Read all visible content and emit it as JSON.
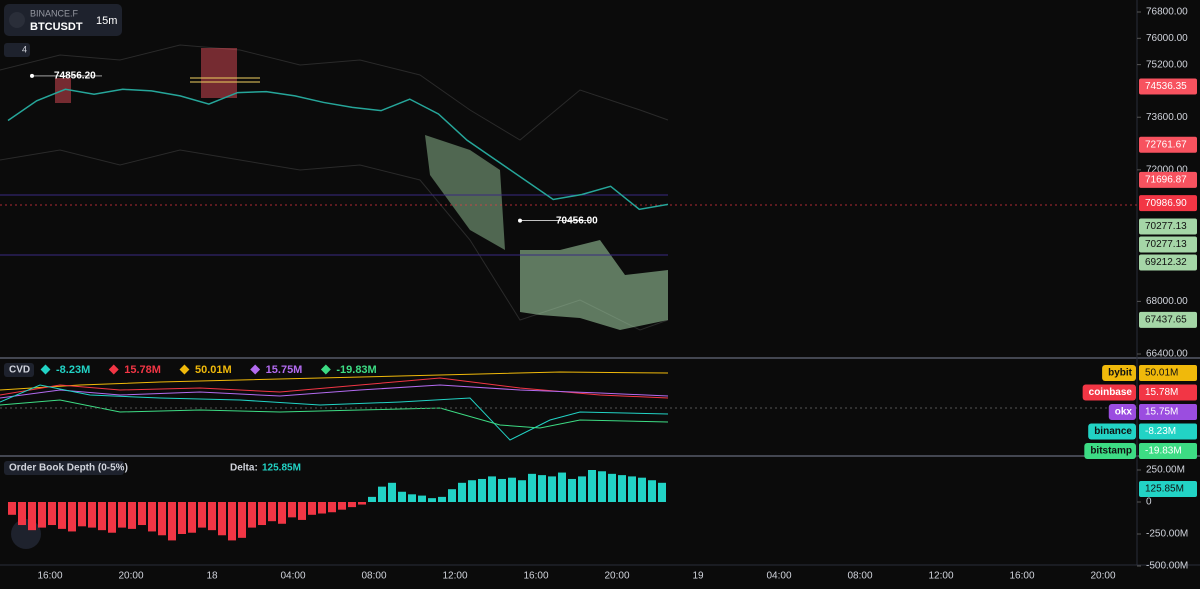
{
  "header": {
    "exchange": "BINANCE.F",
    "symbol": "BTCUSDT",
    "interval": "15m",
    "indicators_count": "4"
  },
  "price_pane": {
    "ylim": [
      66400,
      76800
    ],
    "yticks": [
      {
        "value": 76800,
        "label": "76800.00"
      },
      {
        "value": 76000,
        "label": "76000.00"
      },
      {
        "value": 75200,
        "label": "75200.00"
      },
      {
        "value": 73600,
        "label": "73600.00"
      },
      {
        "value": 72000,
        "label": "72000.00"
      },
      {
        "value": 68000,
        "label": "68000.00"
      },
      {
        "value": 66400,
        "label": "66400.00"
      }
    ],
    "price_labels": [
      {
        "value": 74536.35,
        "label": "74536.35",
        "color": "#f7525f"
      },
      {
        "value": 72761.67,
        "label": "72761.67",
        "color": "#f7525f"
      },
      {
        "value": 71696.87,
        "label": "71696.87",
        "color": "#f7525f"
      },
      {
        "value": 70986.9,
        "label": "70986.90",
        "color": "#f23645"
      },
      {
        "value": 70277.13,
        "label": "70277.13",
        "color": "#a5d6a7"
      },
      {
        "value": 70277.13,
        "label": "70277.13",
        "color": "#a5d6a7"
      },
      {
        "value": 69212.32,
        "label": "69212.32",
        "color": "#a5d6a7"
      },
      {
        "value": 67437.65,
        "label": "67437.65",
        "color": "#a5d6a7"
      }
    ],
    "annotations": [
      {
        "value": 74856.2,
        "label": "74856.20"
      },
      {
        "value": 70456.0,
        "label": "70456.00"
      }
    ],
    "price": {
      "color": "#26a69a",
      "values": [
        73500,
        74100,
        74450,
        74300,
        74450,
        74400,
        74250,
        74000,
        74350,
        74380,
        74250,
        74050,
        73900,
        73800,
        74150,
        73700,
        72900,
        72300,
        71700,
        71100,
        71250,
        71500,
        70800,
        70950
      ]
    }
  },
  "cvd": {
    "title": "CVD",
    "legend": [
      {
        "value": "-8.23M",
        "color": "#22d3c5"
      },
      {
        "value": "15.78M",
        "color": "#f23645"
      },
      {
        "value": "50.01M",
        "color": "#f0b90b"
      },
      {
        "value": "15.75M",
        "color": "#b36bf0"
      },
      {
        "value": "-19.83M",
        "color": "#3ddc84"
      }
    ],
    "exchanges": [
      {
        "name": "bybit",
        "value": "50.01M",
        "color": "#f0b90b"
      },
      {
        "name": "coinbase",
        "value": "15.78M",
        "color": "#f23645"
      },
      {
        "name": "okx",
        "value": "15.75M",
        "color": "#9b4de0"
      },
      {
        "name": "binance",
        "value": "-8.23M",
        "color": "#22d3c5"
      },
      {
        "name": "bitstamp",
        "value": "-19.83M",
        "color": "#3ddc84"
      }
    ]
  },
  "depth": {
    "title": "Order Book Depth (0-5%)",
    "delta_label": "Delta:",
    "delta_value": "125.85M",
    "ylim": [
      -500,
      250
    ],
    "yticks": [
      {
        "value": 250,
        "label": "250.00M"
      },
      {
        "value": 0,
        "label": "0"
      },
      {
        "value": -250,
        "label": "-250.00M"
      },
      {
        "value": -500,
        "label": "-500.00M"
      }
    ],
    "positive_color": "#22d3c5",
    "negative_color": "#f23645",
    "values": [
      -100,
      -180,
      -220,
      -200,
      -180,
      -210,
      -230,
      -190,
      -200,
      -220,
      -240,
      -200,
      -210,
      -180,
      -230,
      -260,
      -300,
      -250,
      -240,
      -200,
      -220,
      -260,
      -300,
      -280,
      -200,
      -180,
      -150,
      -170,
      -120,
      -140,
      -100,
      -90,
      -80,
      -60,
      -40,
      -20,
      40,
      120,
      150,
      80,
      60,
      50,
      30,
      40,
      100,
      150,
      170,
      180,
      200,
      180,
      190,
      170,
      220,
      210,
      200,
      230,
      180,
      200,
      250,
      240,
      220,
      210,
      200,
      190,
      170,
      150
    ]
  },
  "time_axis": [
    "16:00",
    "20:00",
    "18",
    "04:00",
    "08:00",
    "12:00",
    "16:00",
    "20:00",
    "19",
    "04:00",
    "08:00",
    "12:00",
    "16:00",
    "20:00"
  ]
}
